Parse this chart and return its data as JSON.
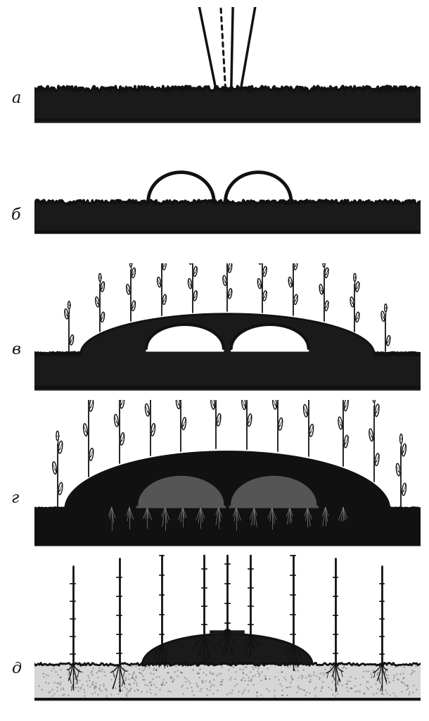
{
  "background_color": "#ffffff",
  "ink_color": "#111111",
  "panel_labels": [
    "а",
    "б",
    "в",
    "г",
    "д"
  ],
  "fig_width": 6.1,
  "fig_height": 10.24,
  "label_fontsize": 16,
  "soil_color": "#1a1a1a",
  "soil_light": "#555555"
}
